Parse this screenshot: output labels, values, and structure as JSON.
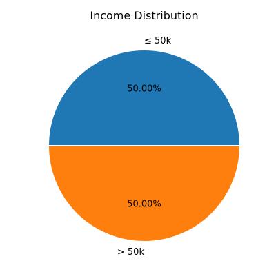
{
  "chart_data": {
    "type": "pie",
    "title": "Income Distribution",
    "labels": [
      "≤ 50k",
      "> 50k"
    ],
    "values": [
      50.0,
      50.0
    ],
    "percent_labels": [
      "50.00%",
      "50.00%"
    ],
    "colors": [
      "#1f77b4",
      "#ff7f0e"
    ],
    "legend": "none",
    "start_angle_deg": 0,
    "direction": "counterclockwise",
    "wedge_edge_color": "#ffffff"
  }
}
